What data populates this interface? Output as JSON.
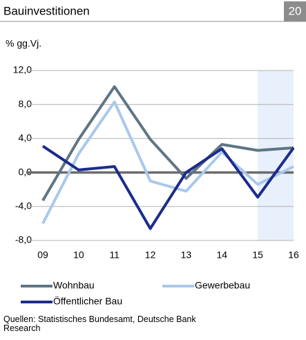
{
  "chart_data": {
    "type": "line",
    "title": "Bauinvestitionen",
    "page_number": "20",
    "subtitle": "% gg.Vj.",
    "source": "Quellen: Statistisches Bundesamt, Deutsche Bank Research",
    "categories": [
      "09",
      "10",
      "11",
      "12",
      "13",
      "14",
      "15",
      "16"
    ],
    "series": [
      {
        "name": "Wohnbau",
        "color": "#5f7585",
        "values": [
          -3.3,
          3.9,
          10.1,
          3.9,
          -0.7,
          3.3,
          2.6,
          2.9
        ]
      },
      {
        "name": "Gewerbebau",
        "color": "#a9c9eb",
        "values": [
          -6.0,
          2.2,
          8.3,
          -1.0,
          -2.2,
          2.4,
          -1.4,
          0.7
        ]
      },
      {
        "name": "Öffentlicher Bau",
        "color": "#1c2b8c",
        "values": [
          3.1,
          0.3,
          0.7,
          -6.6,
          0.0,
          2.8,
          -2.9,
          2.9
        ]
      }
    ],
    "ylim": [
      -8,
      12
    ],
    "yticks": [
      {
        "value": -8,
        "label": "-8,0"
      },
      {
        "value": -4,
        "label": "-4,0"
      },
      {
        "value": 0,
        "label": "0,0"
      },
      {
        "value": 4,
        "label": "4,0"
      },
      {
        "value": 8,
        "label": "8,0"
      },
      {
        "value": 12,
        "label": "12,0"
      }
    ],
    "grid": true,
    "shaded": {
      "from": "15",
      "to": "16",
      "color": "#e8f0fb"
    }
  }
}
